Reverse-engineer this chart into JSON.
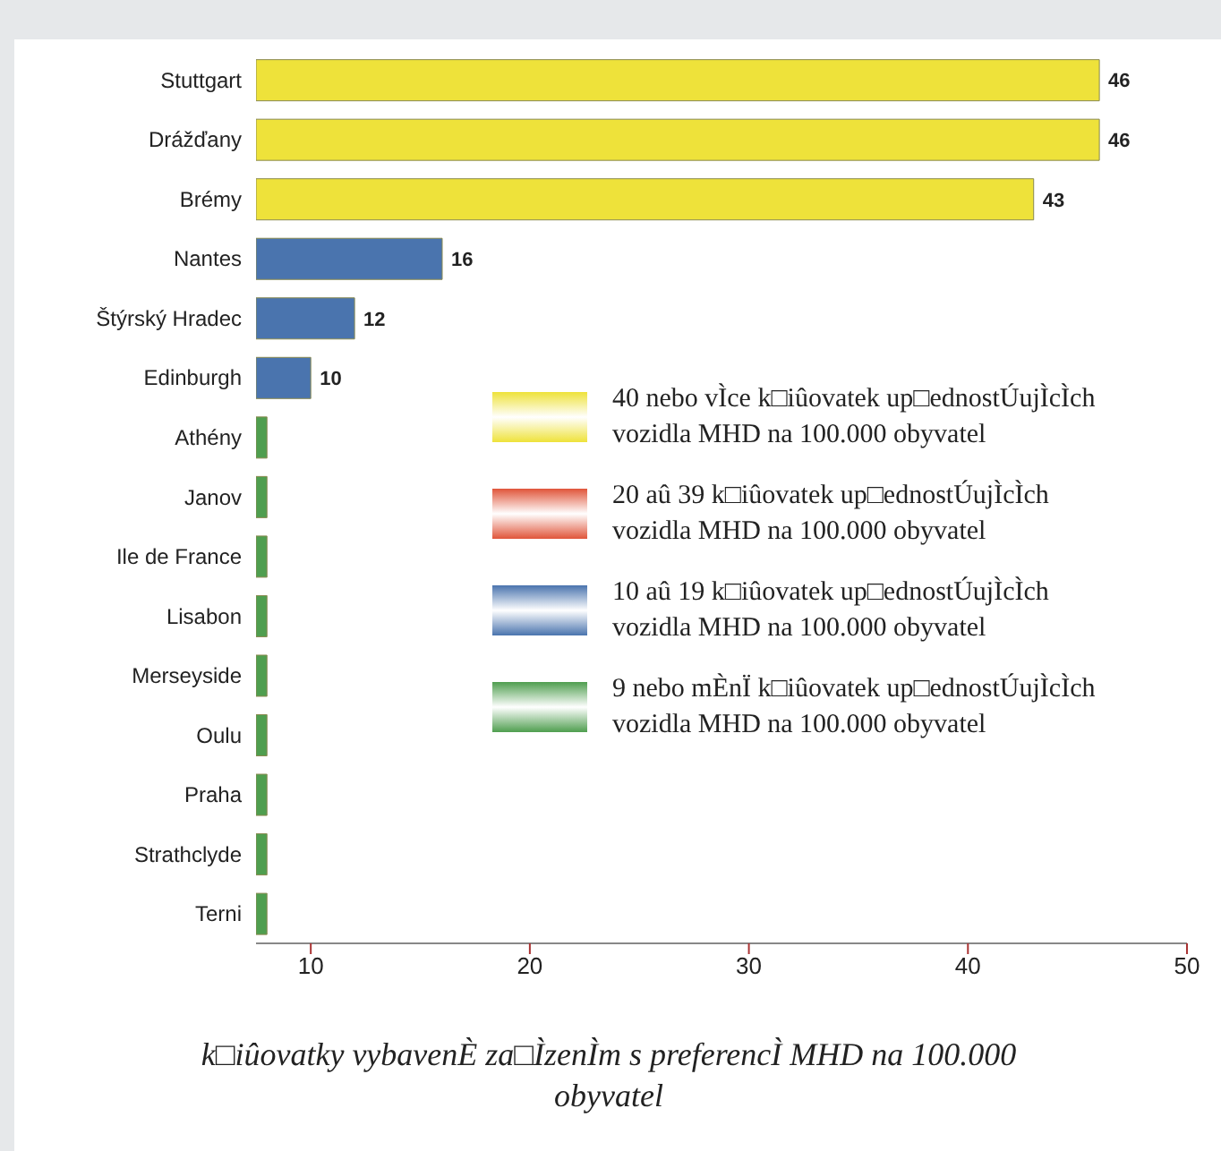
{
  "chart_data": {
    "type": "bar",
    "orientation": "horizontal",
    "stacked": true,
    "xlabel": "k□iûovatky vybavenÈ za□ÌzenÌm s preferencÌ MHD na 100.000 obyvatel",
    "categories": [
      "Stuttgart",
      "Drážďany",
      "Brémy",
      "Nantes",
      "Štýrský Hradec",
      "Edinburgh",
      "Athény",
      "Janov",
      "Ile de France",
      "Lisabon",
      "Merseyside",
      "Oulu",
      "Praha",
      "Strathclyde",
      "Terni"
    ],
    "series": [
      {
        "name": "40 nebo vÌce k□iûovatek up□ednostÚujÌcÌch vozidla MHD na 100.000 obyvatel",
        "color": "#eee23a",
        "values": [
          46,
          46,
          43,
          null,
          null,
          null,
          null,
          null,
          null,
          null,
          null,
          null,
          null,
          null,
          null
        ],
        "value_labels": [
          "46",
          "46",
          "43",
          null,
          null,
          null,
          null,
          null,
          null,
          null,
          null,
          null,
          null,
          null,
          null
        ]
      },
      {
        "name": "20 aû 39 k□iûovatek up□ednostÚujÌcÌch vozidla MHD na 100.000 obyvatel",
        "color": "#e0553a",
        "values": [
          null,
          null,
          null,
          null,
          null,
          null,
          null,
          null,
          null,
          null,
          null,
          null,
          null,
          null,
          null
        ]
      },
      {
        "name": "10 aû 19 k□iûovatek up□ednostÚujÌcÌch vozidla MHD na 100.000 obyvatel",
        "color": "#4a74ae",
        "values": [
          null,
          null,
          null,
          16,
          12,
          10,
          null,
          null,
          null,
          null,
          null,
          null,
          null,
          null,
          null
        ],
        "value_labels": [
          null,
          null,
          null,
          "16",
          "12",
          "10",
          null,
          null,
          null,
          null,
          null,
          null,
          null,
          null,
          null
        ]
      },
      {
        "name": "9 nebo mÈnÏ k□iûovatek up□ednostÚujÌcÌch vozidla MHD na 100.000 obyvatel",
        "color": "#4f9e4f",
        "values": [
          null,
          null,
          null,
          null,
          null,
          null,
          8,
          8,
          8,
          8,
          8,
          8,
          8,
          8,
          8
        ]
      }
    ],
    "xlim": [
      7.5,
      50
    ],
    "xticks": [
      10,
      20,
      30,
      40,
      50
    ],
    "legend": "right",
    "grid": false
  }
}
